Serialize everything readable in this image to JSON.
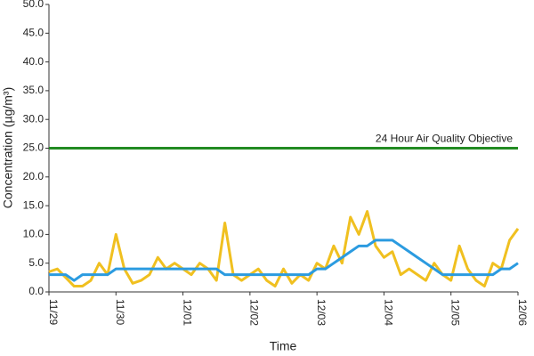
{
  "chart_data": {
    "type": "line",
    "x_label": "Time",
    "y_label": "Concentration (µg/m³)",
    "x": [
      0,
      0.125,
      0.25,
      0.375,
      0.5,
      0.625,
      0.75,
      0.875,
      1,
      1.125,
      1.25,
      1.375,
      1.5,
      1.625,
      1.75,
      1.875,
      2,
      2.125,
      2.25,
      2.375,
      2.5,
      2.625,
      2.75,
      2.875,
      3,
      3.125,
      3.25,
      3.375,
      3.5,
      3.625,
      3.75,
      3.875,
      4,
      4.125,
      4.25,
      4.375,
      4.5,
      4.625,
      4.75,
      4.875,
      5,
      5.125,
      5.25,
      5.375,
      5.5,
      5.625,
      5.75,
      5.875,
      6,
      6.125,
      6.25,
      6.375,
      6.5,
      6.625,
      6.75,
      6.875,
      7
    ],
    "series": [
      {
        "color": "#f0c020",
        "values": [
          3.5,
          4,
          2.5,
          1,
          1,
          2,
          5,
          3,
          10,
          4,
          1.5,
          2,
          3,
          6,
          4,
          5,
          4,
          3,
          5,
          4,
          2,
          12,
          3,
          2,
          3,
          4,
          2,
          1,
          4,
          1.5,
          3,
          2,
          5,
          4,
          8,
          5,
          13,
          10,
          14,
          8,
          6,
          7,
          3,
          4,
          3,
          2,
          5,
          3,
          2,
          8,
          4,
          2,
          1,
          5,
          4,
          9,
          11
        ]
      },
      {
        "color": "#2b9be0",
        "values": [
          3,
          3,
          3,
          2,
          3,
          3,
          3,
          3,
          4,
          4,
          4,
          4,
          4,
          4,
          4,
          4,
          4,
          4,
          4,
          4,
          4,
          3,
          3,
          3,
          3,
          3,
          3,
          3,
          3,
          3,
          3,
          3,
          4,
          4,
          5,
          6,
          7,
          8,
          8,
          9,
          9,
          9,
          8,
          7,
          6,
          5,
          4,
          3,
          3,
          3,
          3,
          3,
          3,
          3,
          4,
          4,
          5
        ]
      }
    ],
    "reference_lines": [
      {
        "value": 25,
        "label": "24 Hour Air Quality Objective",
        "color": "#228b22"
      }
    ],
    "xlim": [
      0,
      7
    ],
    "xticks": [
      {
        "value": 0,
        "label": "11/29"
      },
      {
        "value": 1,
        "label": "11/30"
      },
      {
        "value": 2,
        "label": "12/01"
      },
      {
        "value": 3,
        "label": "12/02"
      },
      {
        "value": 4,
        "label": "12/03"
      },
      {
        "value": 5,
        "label": "12/04"
      },
      {
        "value": 6,
        "label": "12/05"
      },
      {
        "value": 7,
        "label": "12/06"
      }
    ],
    "ylim": [
      0,
      50
    ],
    "yticks": [
      {
        "value": 0,
        "label": "0.0"
      },
      {
        "value": 5,
        "label": "5.0"
      },
      {
        "value": 10,
        "label": "10.0"
      },
      {
        "value": 15,
        "label": "15.0"
      },
      {
        "value": 20,
        "label": "20.0"
      },
      {
        "value": 25,
        "label": "25.0"
      },
      {
        "value": 30,
        "label": "30.0"
      },
      {
        "value": 35,
        "label": "35.0"
      },
      {
        "value": 40,
        "label": "40.0"
      },
      {
        "value": 45,
        "label": "45.0"
      },
      {
        "value": 50,
        "label": "50.0"
      }
    ],
    "grid": false
  }
}
